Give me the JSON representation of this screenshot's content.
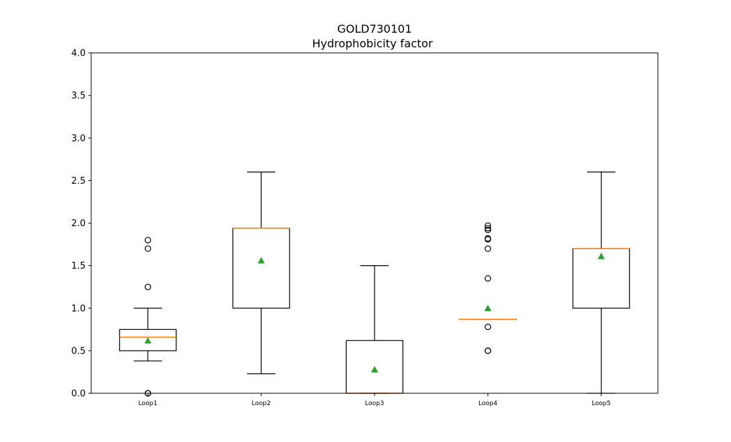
{
  "chart_data": {
    "type": "box",
    "title_line1": "GOLD730101",
    "title_line2": "Hydrophobicity factor",
    "xlabel": "",
    "ylabel": "",
    "ylim": [
      0,
      4
    ],
    "yticks": [
      "0.0",
      "0.5",
      "1.0",
      "1.5",
      "2.0",
      "2.5",
      "3.0",
      "3.5",
      "4.0"
    ],
    "ytick_values": [
      0,
      0.5,
      1.0,
      1.5,
      2.0,
      2.5,
      3.0,
      3.5,
      4.0
    ],
    "grid": false,
    "categories": [
      "Loop1",
      "Loop2",
      "Loop3",
      "Loop4",
      "Loop5"
    ],
    "boxes": [
      {
        "name": "Loop1",
        "whisker_low": 0.38,
        "q1": 0.5,
        "median": 0.66,
        "q3": 0.75,
        "whisker_high": 1.0,
        "mean": 0.62,
        "outliers": [
          0.0,
          0.0,
          1.25,
          1.7,
          1.8
        ]
      },
      {
        "name": "Loop2",
        "whisker_low": 0.23,
        "q1": 1.0,
        "median": 1.94,
        "q3": 1.94,
        "whisker_high": 2.6,
        "mean": 1.56,
        "outliers": []
      },
      {
        "name": "Loop3",
        "whisker_low": 0.0,
        "q1": 0.0,
        "median": 0.0,
        "q3": 0.62,
        "whisker_high": 1.5,
        "mean": 0.28,
        "outliers": []
      },
      {
        "name": "Loop4",
        "whisker_low": 0.87,
        "q1": 0.87,
        "median": 0.87,
        "q3": 0.87,
        "whisker_high": 0.87,
        "mean": 1.0,
        "outliers": [
          0.5,
          0.5,
          0.78,
          1.35,
          1.7,
          1.81,
          1.82,
          1.92,
          1.94,
          1.97
        ]
      },
      {
        "name": "Loop5",
        "whisker_low": 0.0,
        "q1": 1.0,
        "median": 1.7,
        "q3": 1.7,
        "whisker_high": 2.6,
        "mean": 1.61,
        "outliers": []
      }
    ],
    "colors": {
      "box": "#000000",
      "median": "#ff7f0e",
      "mean": "#2ca02c",
      "outlier": "#000000"
    }
  }
}
